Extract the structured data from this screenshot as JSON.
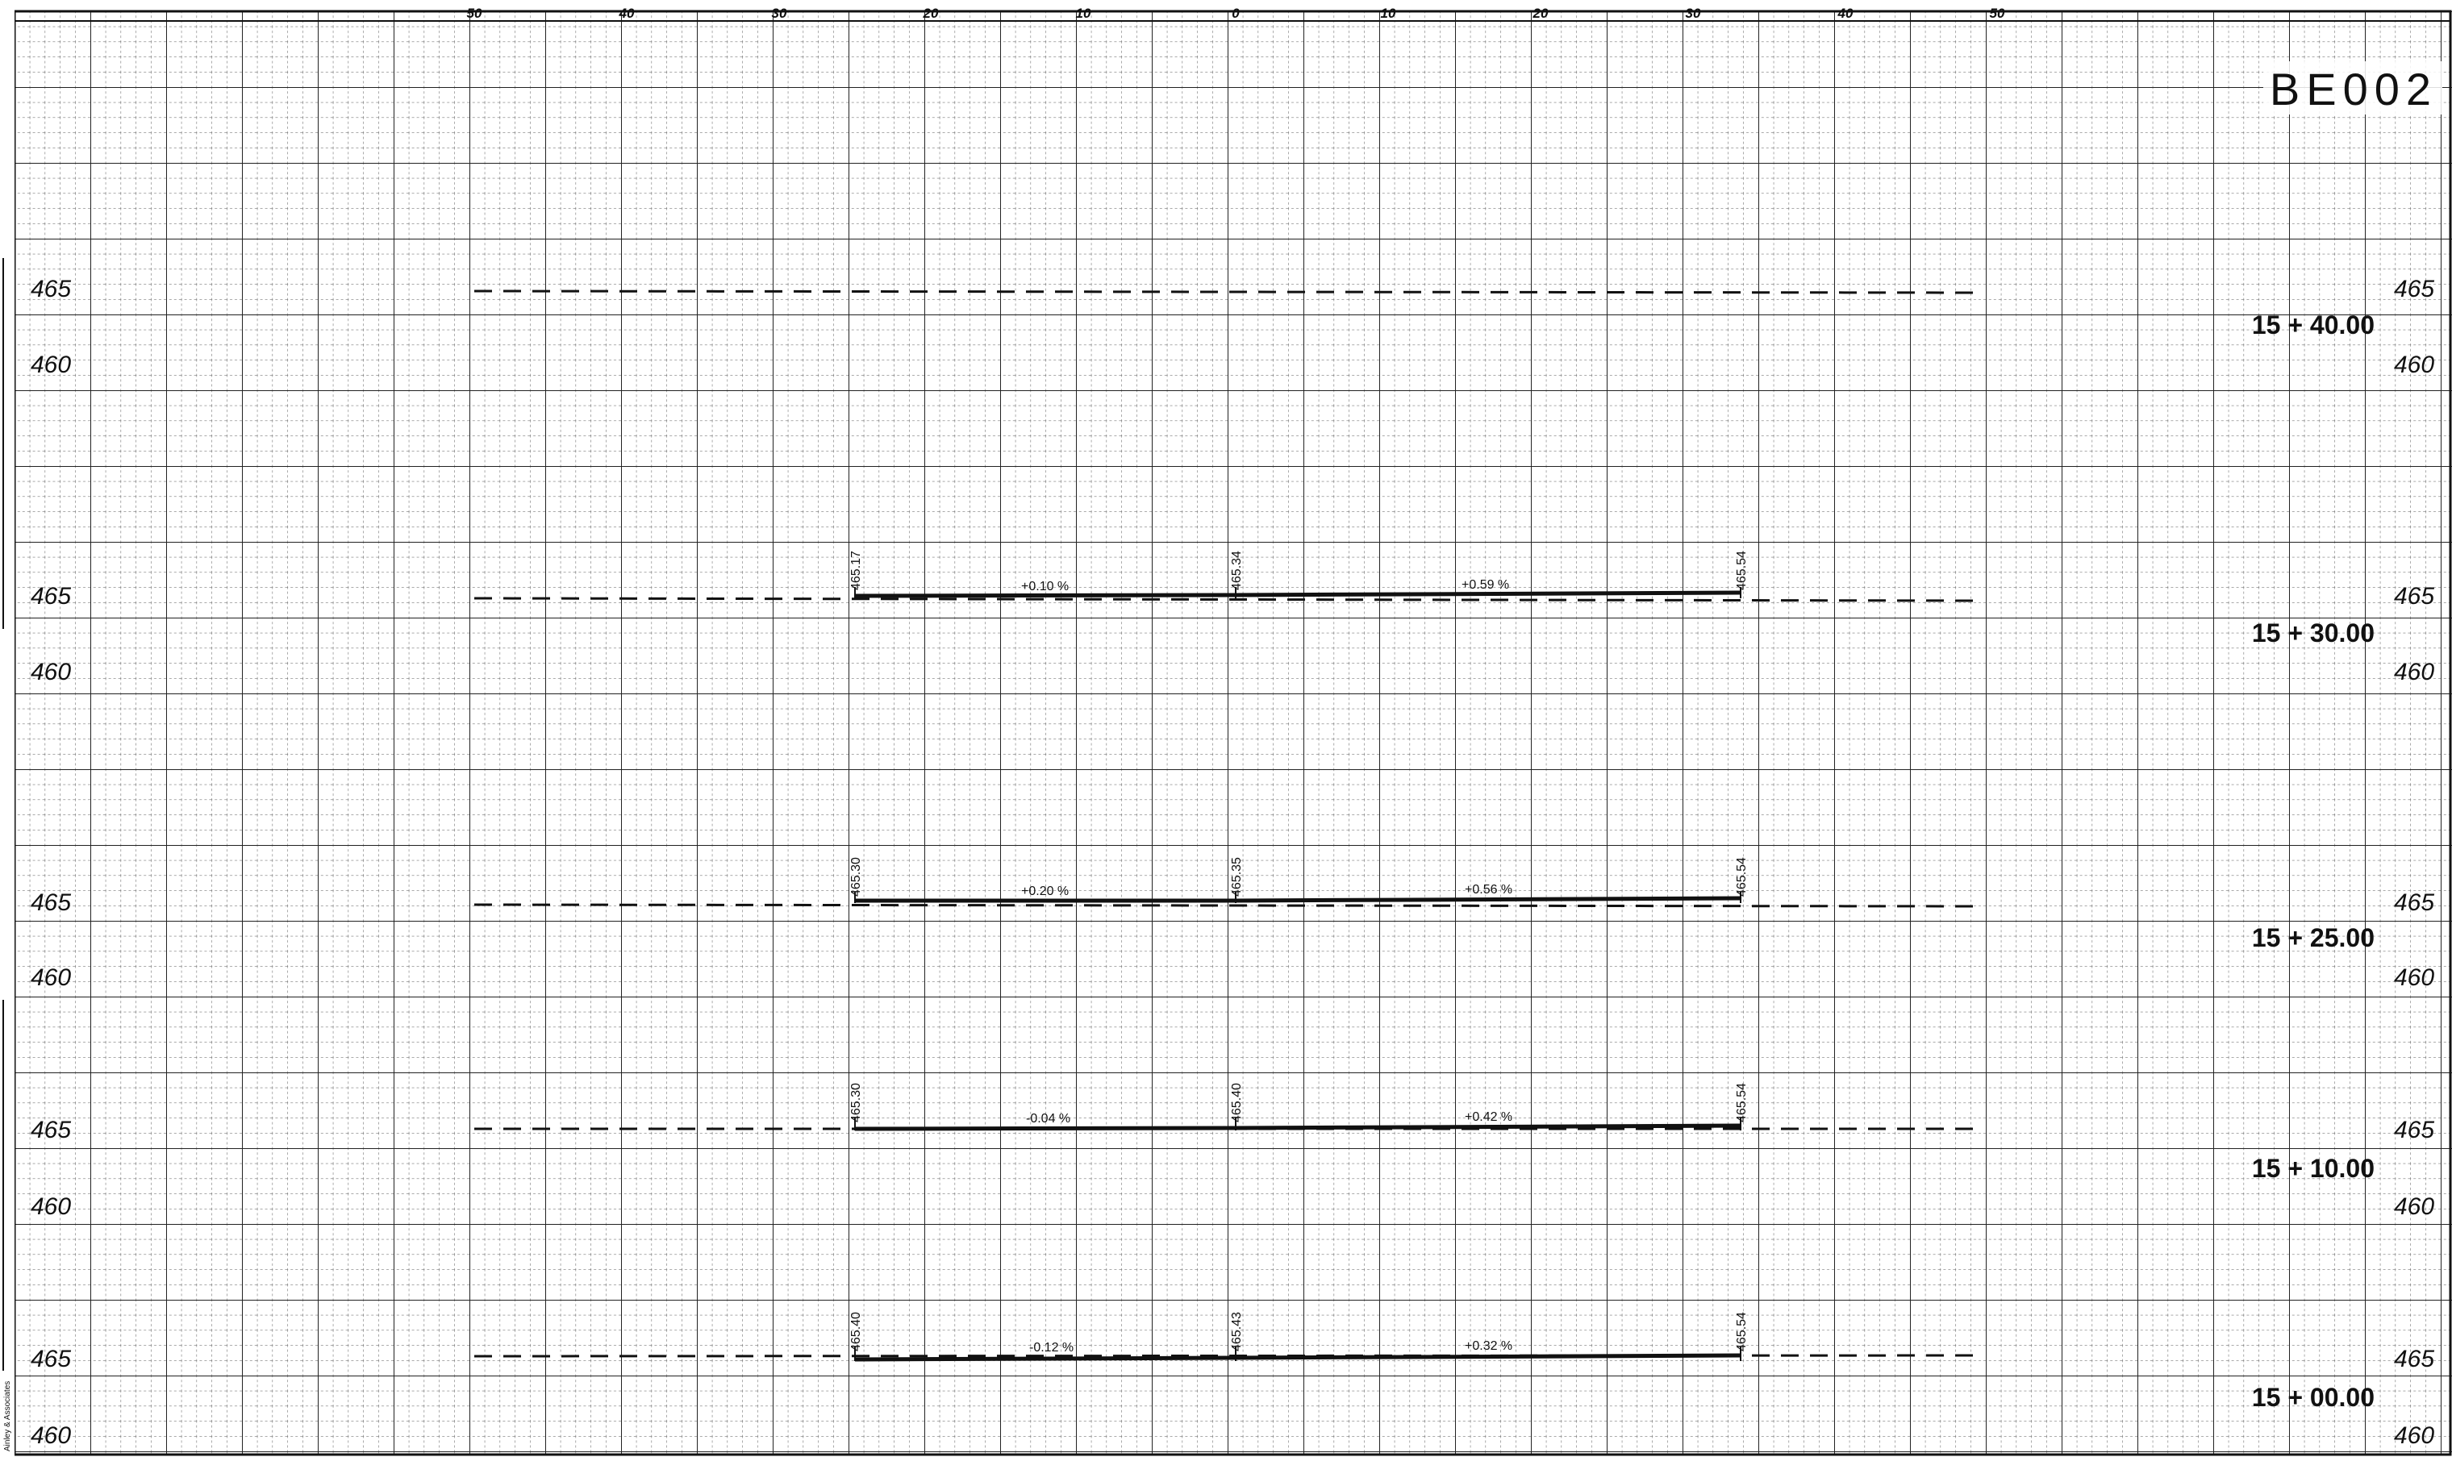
{
  "sheet": {
    "title": "BE002",
    "margin_note": "Ainley & Associates"
  },
  "top_axis": {
    "labels": [
      "50",
      "40",
      "30",
      "20",
      "10",
      "0",
      "10",
      "20",
      "30",
      "40",
      "50"
    ]
  },
  "sections": [
    {
      "station": "15 + 40.00",
      "elev_upper": "465",
      "elev_lower": "460",
      "has_profile": false
    },
    {
      "station": "15 + 30.00",
      "elev_upper": "465",
      "elev_lower": "460",
      "has_profile": true,
      "left_elev": "465.17",
      "center_elev": "465.34",
      "right_elev": "465.54",
      "left_slope": "+0.10 %",
      "right_slope": "+0.59 %"
    },
    {
      "station": "15 + 25.00",
      "elev_upper": "465",
      "elev_lower": "460",
      "has_profile": true,
      "left_elev": "465.30",
      "center_elev": "465.35",
      "right_elev": "465.54",
      "left_slope": "+0.20 %",
      "right_slope": "+0.56 %"
    },
    {
      "station": "15 + 10.00",
      "elev_upper": "465",
      "elev_lower": "460",
      "has_profile": true,
      "left_elev": "465.30",
      "center_elev": "465.40",
      "right_elev": "465.54",
      "left_slope": "-0.04 %",
      "right_slope": "+0.42 %"
    },
    {
      "station": "15 + 00.00",
      "elev_upper": "465",
      "elev_lower": "460",
      "has_profile": true,
      "left_elev": "465.40",
      "center_elev": "465.43",
      "right_elev": "465.54",
      "left_slope": "-0.12 %",
      "right_slope": "+0.32 %"
    }
  ],
  "colors": {
    "ink": "#111111",
    "grid_major": "#222222",
    "grid_minor": "#555555",
    "paper": "#ffffff"
  }
}
